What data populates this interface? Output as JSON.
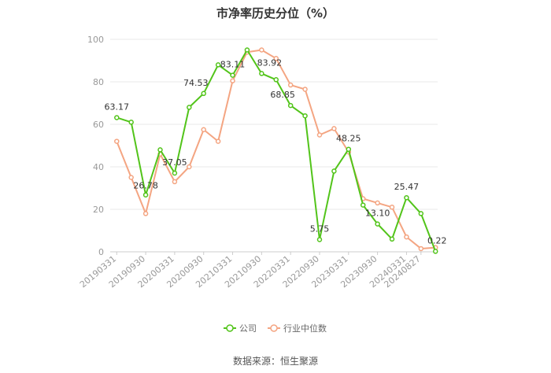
{
  "chart_data": {
    "type": "line",
    "title": "市净率历史分位（%）",
    "xlabel": "",
    "ylabel": "",
    "ylim": [
      0,
      100
    ],
    "yticks": [
      0,
      20,
      40,
      60,
      80,
      100
    ],
    "x_tick_labels": [
      "20190331",
      "20190930",
      "20200331",
      "20200930",
      "20210331",
      "20210930",
      "20220331",
      "20220930",
      "20230331",
      "20230930",
      "20240331",
      "20240827"
    ],
    "x_tick_positions": [
      0,
      2,
      4,
      6,
      8,
      10,
      12,
      14,
      16,
      18,
      20,
      21
    ],
    "grid": true,
    "legend_position": "bottom",
    "series": [
      {
        "name": "公司",
        "color": "#52c41a",
        "values": [
          63.17,
          61,
          26.78,
          48,
          37.05,
          68,
          74.53,
          88,
          83.11,
          95,
          83.92,
          81,
          68.85,
          64,
          5.75,
          38,
          48.25,
          22,
          13.1,
          6,
          25.47,
          18,
          0.22
        ]
      },
      {
        "name": "行业中位数",
        "color": "#f4a582",
        "values": [
          52,
          35,
          18,
          46,
          33,
          40,
          57.5,
          52,
          80.5,
          94,
          95,
          91,
          78.5,
          76.5,
          55,
          58,
          47,
          25,
          23,
          21,
          7,
          1.5,
          2
        ]
      }
    ],
    "data_labels": [
      {
        "series": 0,
        "index": 0,
        "text": "63.17"
      },
      {
        "series": 0,
        "index": 2,
        "text": "26.78"
      },
      {
        "series": 0,
        "index": 4,
        "text": "37.05"
      },
      {
        "series": 0,
        "index": 6,
        "text": "74.53"
      },
      {
        "series": 0,
        "index": 8,
        "text": "83.11"
      },
      {
        "series": 0,
        "index": 10,
        "text": "83.92"
      },
      {
        "series": 0,
        "index": 12,
        "text": "68.85"
      },
      {
        "series": 0,
        "index": 14,
        "text": "5.75"
      },
      {
        "series": 0,
        "index": 16,
        "text": "48.25"
      },
      {
        "series": 0,
        "index": 18,
        "text": "13.10"
      },
      {
        "series": 0,
        "index": 20,
        "text": "25.47"
      },
      {
        "series": 0,
        "index": 22,
        "text": "0.22"
      }
    ],
    "source": "数据来源：恒生聚源"
  }
}
